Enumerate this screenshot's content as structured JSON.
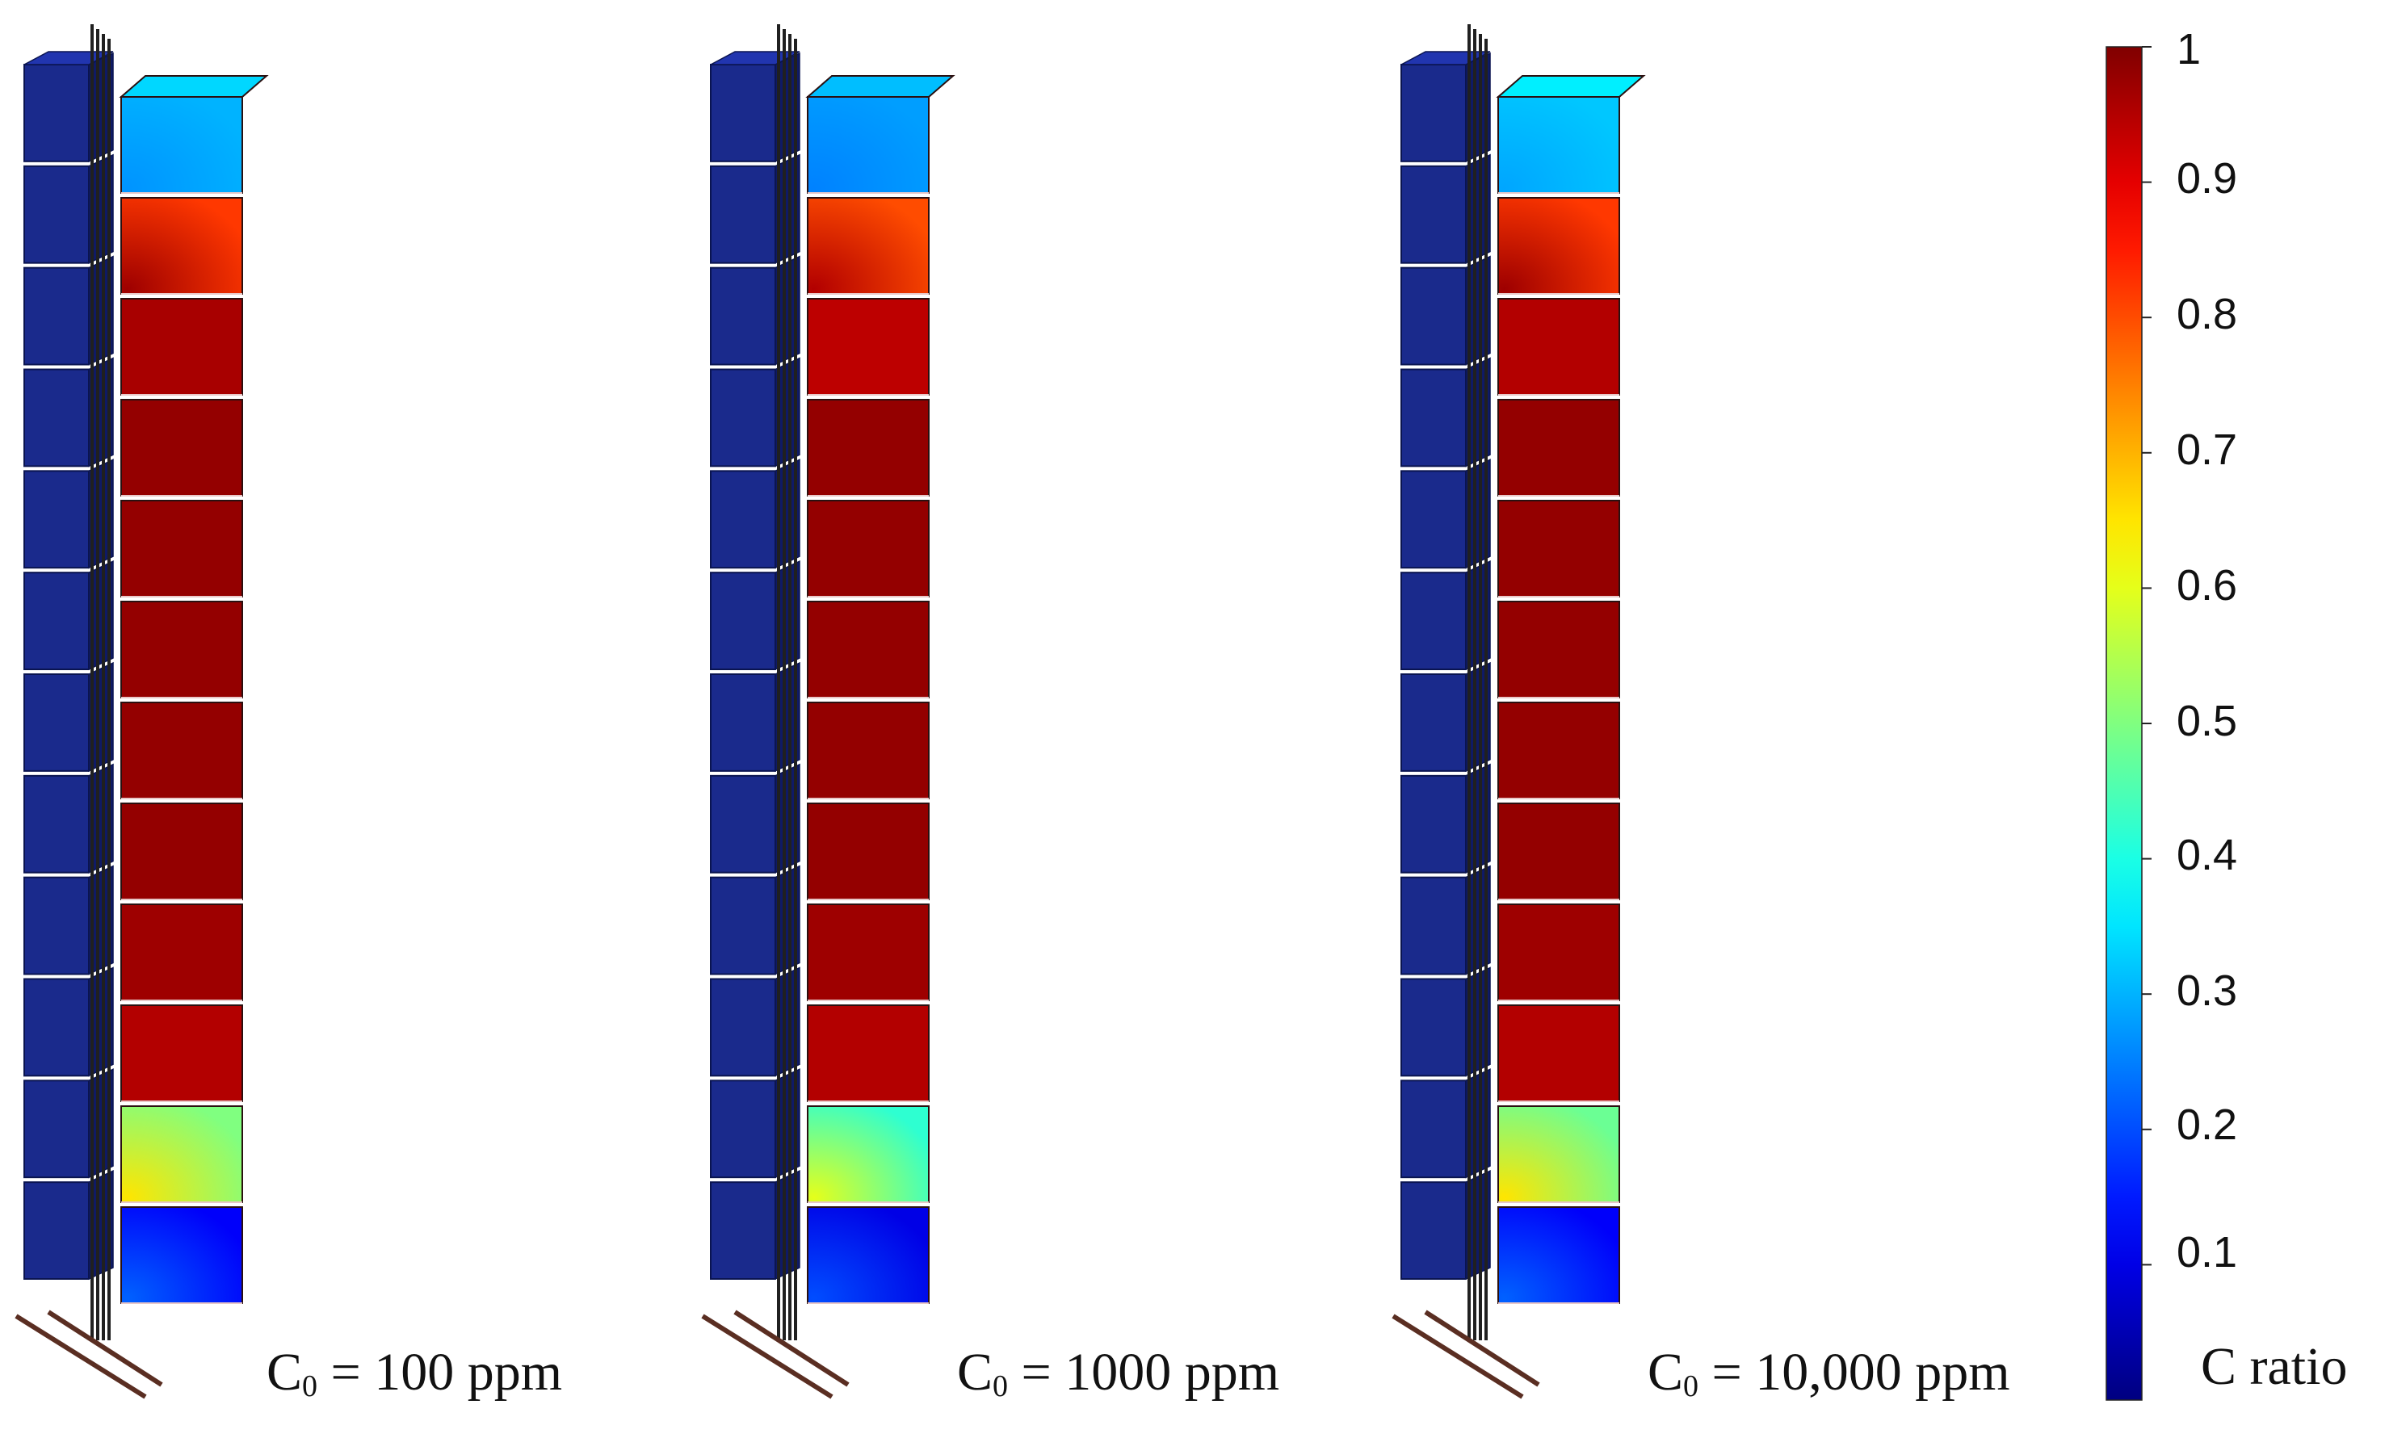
{
  "panels": [
    {
      "label_prefix": "C",
      "label_sub": "0",
      "label_suffix": " = 100 ppm",
      "column_values": [
        0.3,
        0.82,
        0.96,
        0.98,
        0.98,
        0.98,
        0.98,
        0.98,
        0.97,
        0.95,
        0.5,
        0.12
      ],
      "bottom_spots": [
        0.65,
        0.22
      ]
    },
    {
      "label_prefix": "C",
      "label_sub": "0",
      "label_suffix": " = 1000 ppm",
      "column_values": [
        0.28,
        0.8,
        0.94,
        0.98,
        0.98,
        0.98,
        0.98,
        0.98,
        0.97,
        0.95,
        0.42,
        0.1
      ],
      "bottom_spots": [
        0.6,
        0.2
      ]
    },
    {
      "label_prefix": "C",
      "label_sub": "0",
      "label_suffix": " = 10,000 ppm",
      "column_values": [
        0.32,
        0.82,
        0.95,
        0.98,
        0.98,
        0.98,
        0.98,
        0.98,
        0.97,
        0.95,
        0.48,
        0.12
      ],
      "bottom_spots": [
        0.65,
        0.22
      ]
    }
  ],
  "colorbar": {
    "title": "C ratio",
    "ticks": [
      "1",
      "0.9",
      "0.8",
      "0.7",
      "0.6",
      "0.5",
      "0.4",
      "0.3",
      "0.2",
      "0.1"
    ],
    "tick_values": [
      1,
      0.9,
      0.8,
      0.7,
      0.6,
      0.5,
      0.4,
      0.3,
      0.2,
      0.1
    ],
    "min": 0,
    "max": 1,
    "colormap": "jet"
  },
  "colors": {
    "left_column": "#1a2a8c",
    "left_column_dark": "#0f1a66",
    "pipe": "#202020",
    "base_rod": "#5a2e22"
  }
}
